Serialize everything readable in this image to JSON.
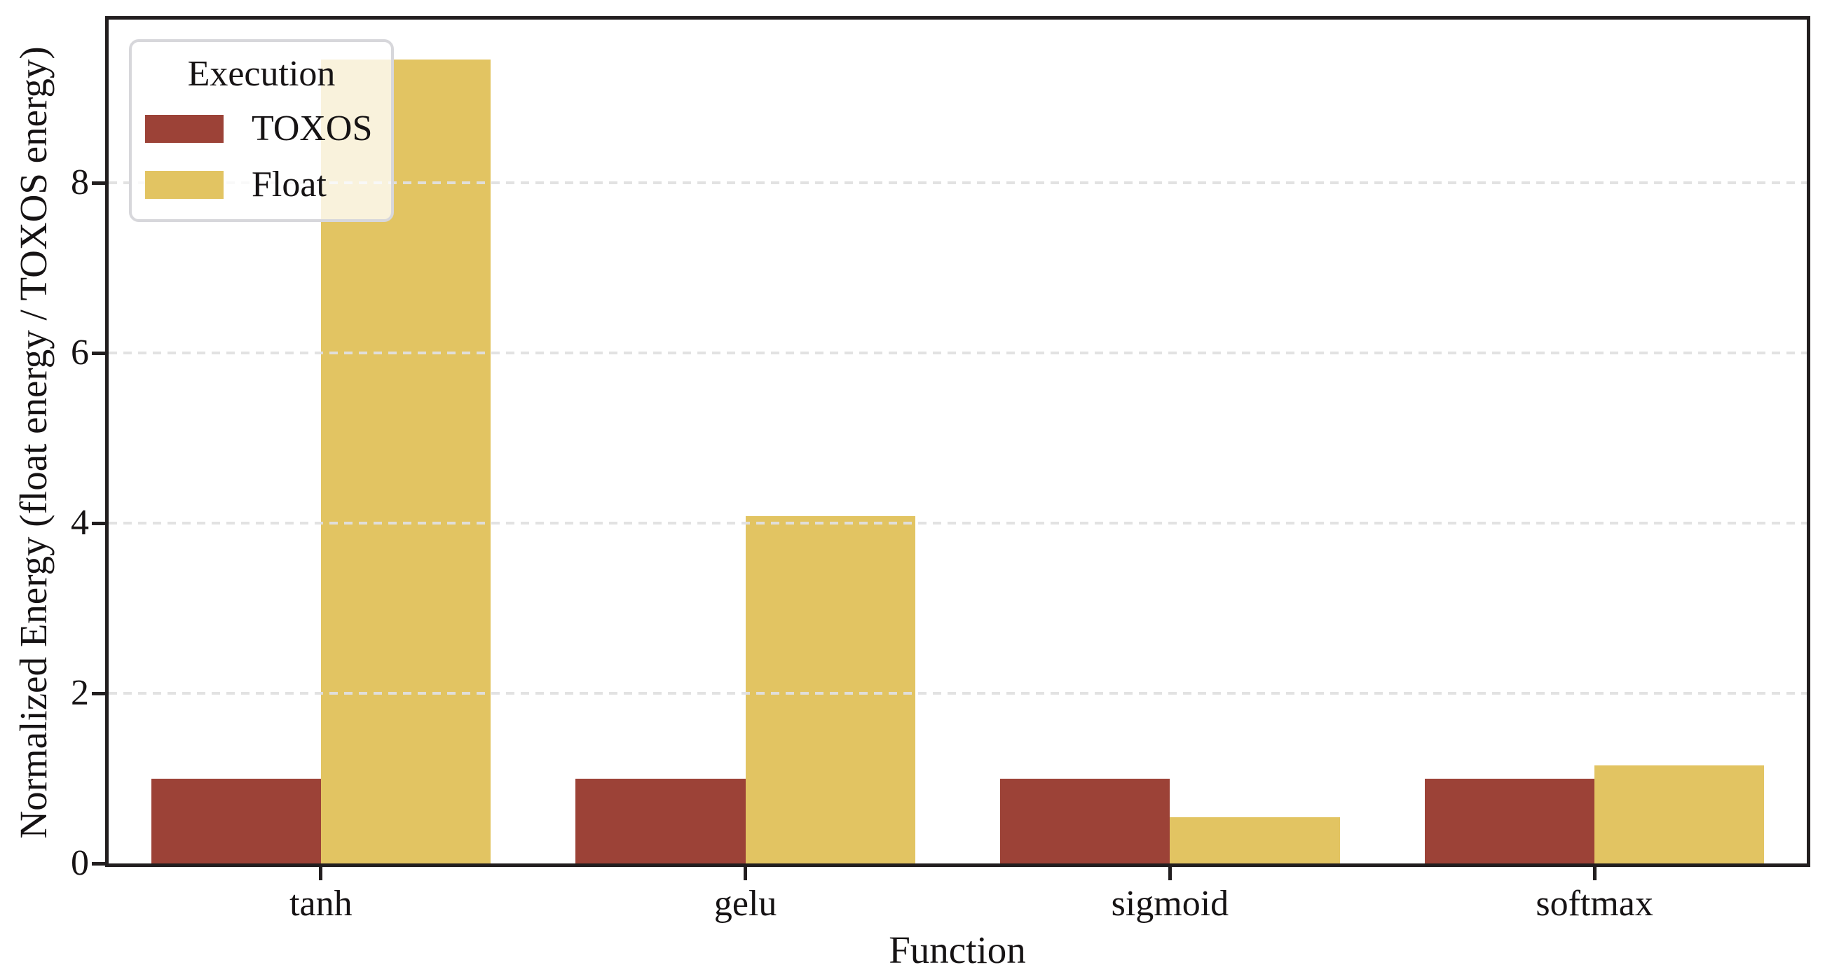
{
  "chart_data": {
    "type": "bar",
    "categories": [
      "tanh",
      "gelu",
      "sigmoid",
      "softmax"
    ],
    "series": [
      {
        "name": "TOXOS",
        "color": "#9c4237",
        "values": [
          1.0,
          1.0,
          1.0,
          1.0
        ]
      },
      {
        "name": "Float",
        "color": "#e2c462",
        "values": [
          9.45,
          4.08,
          0.54,
          1.15
        ]
      }
    ],
    "title": "",
    "xlabel": "Function",
    "ylabel": "Normalized Energy (float energy / TOXOS energy)",
    "ylim": [
      0,
      9.92
    ],
    "yticks": [
      0,
      2,
      4,
      6,
      8
    ],
    "bar_width_fraction": 0.4,
    "grid": "horizontal dashed gridlines at yticks, drawn over bars",
    "legend": {
      "title": "Execution",
      "position": "upper left",
      "entries": [
        "TOXOS",
        "Float"
      ]
    },
    "colors": {
      "toxos_red": "#9c4237",
      "float_gold": "#e2c462",
      "spine_black": "#221e1f",
      "gridline_gray": "#e0e0e0",
      "legend_border_gray": "#d7d7db"
    }
  }
}
